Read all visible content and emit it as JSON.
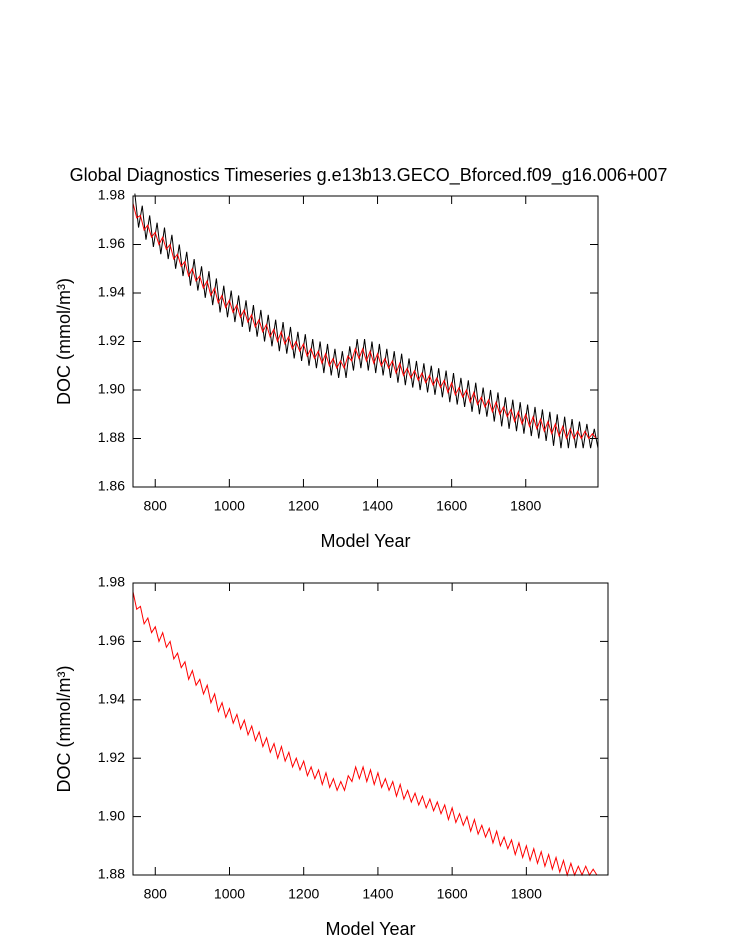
{
  "chart_data": [
    {
      "type": "line",
      "title": "Global Diagnostics Timeseries g.e13b13.GECO_Bforced.f09_g16.006+007",
      "x_label": "Model Year",
      "y_label": "DOC (mmol/m³)",
      "xlim": [
        740,
        1995
      ],
      "ylim": [
        1.86,
        1.98
      ],
      "xticks": [
        800,
        1000,
        1200,
        1400,
        1600,
        1800
      ],
      "yticks": [
        1.86,
        1.88,
        {
          "value": 1.9,
          "label": "1.90"
        },
        1.92,
        1.94,
        1.96,
        1.98
      ],
      "series": [
        {
          "color": "#000000",
          "x": [
            745,
            755,
            765,
            775,
            785,
            795,
            805,
            815,
            825,
            835,
            845,
            855,
            865,
            875,
            885,
            895,
            905,
            915,
            925,
            935,
            945,
            955,
            965,
            975,
            985,
            995,
            1005,
            1015,
            1025,
            1035,
            1045,
            1055,
            1065,
            1075,
            1085,
            1095,
            1105,
            1115,
            1125,
            1135,
            1145,
            1155,
            1165,
            1175,
            1185,
            1195,
            1205,
            1215,
            1225,
            1235,
            1245,
            1255,
            1265,
            1275,
            1285,
            1295,
            1305,
            1315,
            1325,
            1335,
            1345,
            1355,
            1365,
            1375,
            1385,
            1395,
            1405,
            1415,
            1425,
            1435,
            1445,
            1455,
            1465,
            1475,
            1485,
            1495,
            1505,
            1515,
            1525,
            1535,
            1545,
            1555,
            1565,
            1575,
            1585,
            1595,
            1605,
            1615,
            1625,
            1635,
            1645,
            1655,
            1665,
            1675,
            1685,
            1695,
            1705,
            1715,
            1725,
            1735,
            1745,
            1755,
            1765,
            1775,
            1785,
            1795,
            1805,
            1815,
            1825,
            1835,
            1845,
            1855,
            1865,
            1875,
            1885,
            1895,
            1905,
            1915,
            1925,
            1935,
            1945,
            1955,
            1965,
            1975,
            1985,
            1995
          ],
          "values": [
            1.981,
            1.967,
            1.976,
            1.962,
            1.972,
            1.959,
            1.969,
            1.956,
            1.967,
            1.954,
            1.964,
            1.95,
            1.96,
            1.947,
            1.957,
            1.943,
            1.954,
            1.941,
            1.951,
            1.938,
            1.949,
            1.935,
            1.946,
            1.932,
            1.943,
            1.93,
            1.941,
            1.928,
            1.939,
            1.926,
            1.937,
            1.924,
            1.935,
            1.922,
            1.933,
            1.92,
            1.931,
            1.918,
            1.929,
            1.916,
            1.928,
            1.915,
            1.926,
            1.913,
            1.924,
            1.912,
            1.923,
            1.91,
            1.921,
            1.909,
            1.92,
            1.907,
            1.919,
            1.906,
            1.917,
            1.905,
            1.916,
            1.905,
            1.918,
            1.908,
            1.921,
            1.909,
            1.921,
            1.908,
            1.92,
            1.907,
            1.919,
            1.906,
            1.917,
            1.905,
            1.916,
            1.903,
            1.915,
            1.902,
            1.913,
            1.901,
            1.912,
            1.9,
            1.911,
            1.899,
            1.91,
            1.898,
            1.909,
            1.897,
            1.908,
            1.895,
            1.907,
            1.894,
            1.905,
            1.893,
            1.904,
            1.891,
            1.903,
            1.89,
            1.901,
            1.889,
            1.9,
            1.887,
            1.899,
            1.885,
            1.897,
            1.884,
            1.896,
            1.883,
            1.895,
            1.882,
            1.894,
            1.881,
            1.893,
            1.88,
            1.892,
            1.879,
            1.891,
            1.877,
            1.89,
            1.876,
            1.889,
            1.876,
            1.888,
            1.876,
            1.887,
            1.876,
            1.886,
            1.876,
            1.884,
            1.876
          ]
        },
        {
          "color": "#ff0000",
          "x": [
            740,
            750,
            760,
            770,
            780,
            790,
            800,
            810,
            820,
            830,
            840,
            850,
            860,
            870,
            880,
            890,
            900,
            910,
            920,
            930,
            940,
            950,
            960,
            970,
            980,
            990,
            1000,
            1010,
            1020,
            1030,
            1040,
            1050,
            1060,
            1070,
            1080,
            1090,
            1100,
            1110,
            1120,
            1130,
            1140,
            1150,
            1160,
            1170,
            1180,
            1190,
            1200,
            1210,
            1220,
            1230,
            1240,
            1250,
            1260,
            1270,
            1280,
            1290,
            1300,
            1310,
            1320,
            1330,
            1340,
            1350,
            1360,
            1370,
            1380,
            1390,
            1400,
            1410,
            1420,
            1430,
            1440,
            1450,
            1460,
            1470,
            1480,
            1490,
            1500,
            1510,
            1520,
            1530,
            1540,
            1550,
            1560,
            1570,
            1580,
            1590,
            1600,
            1610,
            1620,
            1630,
            1640,
            1650,
            1660,
            1670,
            1680,
            1690,
            1700,
            1710,
            1720,
            1730,
            1740,
            1750,
            1760,
            1770,
            1780,
            1790,
            1800,
            1810,
            1820,
            1830,
            1840,
            1850,
            1860,
            1870,
            1880,
            1890,
            1900,
            1910,
            1920,
            1930,
            1940,
            1950,
            1960,
            1970,
            1980,
            1990
          ],
          "values": [
            1.977,
            1.971,
            1.972,
            1.966,
            1.968,
            1.963,
            1.965,
            1.96,
            1.963,
            1.958,
            1.96,
            1.954,
            1.956,
            1.951,
            1.953,
            1.947,
            1.95,
            1.945,
            1.947,
            1.942,
            1.945,
            1.939,
            1.942,
            1.936,
            1.939,
            1.934,
            1.937,
            1.932,
            1.935,
            1.93,
            1.933,
            1.928,
            1.931,
            1.926,
            1.929,
            1.924,
            1.927,
            1.922,
            1.925,
            1.92,
            1.924,
            1.919,
            1.922,
            1.917,
            1.92,
            1.916,
            1.919,
            1.914,
            1.917,
            1.913,
            1.916,
            1.911,
            1.915,
            1.91,
            1.913,
            1.909,
            1.912,
            1.909,
            1.914,
            1.912,
            1.917,
            1.913,
            1.917,
            1.912,
            1.916,
            1.911,
            1.915,
            1.91,
            1.913,
            1.909,
            1.912,
            1.907,
            1.911,
            1.906,
            1.909,
            1.905,
            1.908,
            1.904,
            1.907,
            1.903,
            1.906,
            1.902,
            1.905,
            1.901,
            1.904,
            1.899,
            1.903,
            1.898,
            1.901,
            1.897,
            1.9,
            1.895,
            1.899,
            1.894,
            1.897,
            1.893,
            1.896,
            1.891,
            1.895,
            1.89,
            1.893,
            1.889,
            1.892,
            1.887,
            1.891,
            1.886,
            1.89,
            1.885,
            1.889,
            1.884,
            1.888,
            1.883,
            1.887,
            1.882,
            1.886,
            1.881,
            1.885,
            1.88,
            1.884,
            1.88,
            1.883,
            1.88,
            1.883,
            1.88,
            1.882,
            1.88
          ]
        }
      ]
    },
    {
      "type": "line",
      "x_label": "Model Year",
      "y_label": "DOC (mmol/m³)",
      "xlim": [
        740,
        2020
      ],
      "ylim": [
        1.88,
        1.98
      ],
      "xticks": [
        800,
        1000,
        1200,
        1400,
        1600,
        1800
      ],
      "yticks": [
        1.88,
        {
          "value": 1.9,
          "label": "1.90"
        },
        1.92,
        1.94,
        1.96,
        1.98
      ],
      "series": [
        {
          "color": "#ff0000",
          "x": [
            740,
            750,
            760,
            770,
            780,
            790,
            800,
            810,
            820,
            830,
            840,
            850,
            860,
            870,
            880,
            890,
            900,
            910,
            920,
            930,
            940,
            950,
            960,
            970,
            980,
            990,
            1000,
            1010,
            1020,
            1030,
            1040,
            1050,
            1060,
            1070,
            1080,
            1090,
            1100,
            1110,
            1120,
            1130,
            1140,
            1150,
            1160,
            1170,
            1180,
            1190,
            1200,
            1210,
            1220,
            1230,
            1240,
            1250,
            1260,
            1270,
            1280,
            1290,
            1300,
            1310,
            1320,
            1330,
            1340,
            1350,
            1360,
            1370,
            1380,
            1390,
            1400,
            1410,
            1420,
            1430,
            1440,
            1450,
            1460,
            1470,
            1480,
            1490,
            1500,
            1510,
            1520,
            1530,
            1540,
            1550,
            1560,
            1570,
            1580,
            1590,
            1600,
            1610,
            1620,
            1630,
            1640,
            1650,
            1660,
            1670,
            1680,
            1690,
            1700,
            1710,
            1720,
            1730,
            1740,
            1750,
            1760,
            1770,
            1780,
            1790,
            1800,
            1810,
            1820,
            1830,
            1840,
            1850,
            1860,
            1870,
            1880,
            1890,
            1900,
            1910,
            1920,
            1930,
            1940,
            1950,
            1960,
            1970,
            1980,
            1990
          ],
          "values": [
            1.977,
            1.971,
            1.972,
            1.966,
            1.968,
            1.963,
            1.965,
            1.96,
            1.963,
            1.958,
            1.96,
            1.954,
            1.956,
            1.951,
            1.953,
            1.947,
            1.95,
            1.945,
            1.947,
            1.942,
            1.945,
            1.939,
            1.942,
            1.936,
            1.939,
            1.934,
            1.937,
            1.932,
            1.935,
            1.93,
            1.933,
            1.928,
            1.931,
            1.926,
            1.929,
            1.924,
            1.927,
            1.922,
            1.925,
            1.92,
            1.924,
            1.919,
            1.922,
            1.917,
            1.92,
            1.916,
            1.919,
            1.914,
            1.917,
            1.913,
            1.916,
            1.911,
            1.915,
            1.91,
            1.913,
            1.909,
            1.912,
            1.909,
            1.914,
            1.912,
            1.917,
            1.913,
            1.917,
            1.912,
            1.916,
            1.911,
            1.915,
            1.91,
            1.913,
            1.909,
            1.912,
            1.907,
            1.911,
            1.906,
            1.909,
            1.905,
            1.908,
            1.904,
            1.907,
            1.903,
            1.906,
            1.902,
            1.905,
            1.901,
            1.904,
            1.899,
            1.903,
            1.898,
            1.901,
            1.897,
            1.9,
            1.895,
            1.899,
            1.894,
            1.897,
            1.893,
            1.896,
            1.891,
            1.895,
            1.89,
            1.893,
            1.889,
            1.892,
            1.887,
            1.891,
            1.886,
            1.89,
            1.885,
            1.889,
            1.884,
            1.888,
            1.883,
            1.887,
            1.882,
            1.886,
            1.881,
            1.885,
            1.88,
            1.884,
            1.88,
            1.883,
            1.88,
            1.883,
            1.88,
            1.882,
            1.88
          ]
        }
      ]
    }
  ]
}
